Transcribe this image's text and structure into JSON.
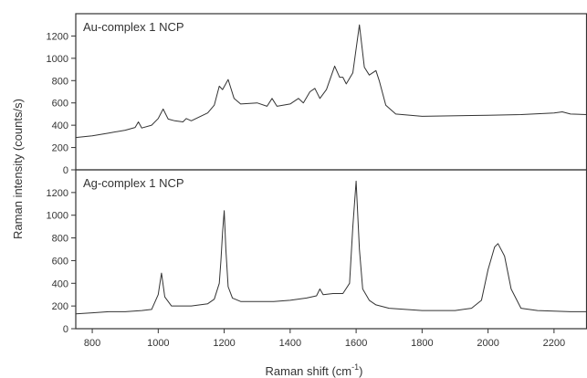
{
  "chart_data": {
    "type": "line",
    "ylabel": "Raman intensity (counts/s)",
    "xlabel": {
      "main": "Raman shift (cm",
      "sup": "-1",
      "close": ")"
    },
    "xlim": [
      750,
      2300
    ],
    "xticks": [
      800,
      1000,
      1200,
      1400,
      1600,
      1800,
      2000,
      2200
    ],
    "grid": false,
    "legend": "none",
    "line_color": "#333333",
    "panels": [
      {
        "label": "Au-complex 1 NCP",
        "ylim": [
          0,
          1400
        ],
        "yticks": [
          0,
          200,
          400,
          600,
          800,
          1000,
          1200
        ],
        "series": [
          {
            "x": [
              750,
              800,
              850,
              900,
              930,
              940,
              950,
              980,
              1000,
              1015,
              1030,
              1050,
              1075,
              1085,
              1100,
              1150,
              1170,
              1185,
              1195,
              1212,
              1230,
              1250,
              1300,
              1330,
              1345,
              1360,
              1400,
              1425,
              1440,
              1460,
              1475,
              1490,
              1510,
              1535,
              1550,
              1560,
              1570,
              1590,
              1610,
              1625,
              1640,
              1660,
              1670,
              1690,
              1720,
              1800,
              2000,
              2100,
              2200,
              2225,
              2250,
              2300
            ],
            "y": [
              290,
              305,
              330,
              355,
              380,
              430,
              375,
              400,
              460,
              545,
              455,
              440,
              430,
              460,
              440,
              510,
              580,
              750,
              720,
              810,
              640,
              590,
              600,
              570,
              640,
              570,
              590,
              640,
              600,
              700,
              730,
              640,
              720,
              930,
              830,
              830,
              770,
              870,
              1300,
              920,
              850,
              890,
              800,
              580,
              500,
              480,
              490,
              495,
              510,
              520,
              500,
              495
            ]
          }
        ]
      },
      {
        "label": "Ag-complex 1 NCP",
        "ylim": [
          0,
          1400
        ],
        "yticks": [
          0,
          200,
          400,
          600,
          800,
          1000,
          1200
        ],
        "series": [
          {
            "x": [
              750,
              800,
              850,
              900,
              950,
              980,
              1000,
              1010,
              1020,
              1040,
              1100,
              1150,
              1170,
              1185,
              1190,
              1195,
              1200,
              1205,
              1212,
              1225,
              1250,
              1300,
              1350,
              1400,
              1450,
              1480,
              1490,
              1500,
              1530,
              1560,
              1580,
              1590,
              1600,
              1610,
              1620,
              1640,
              1660,
              1700,
              1800,
              1900,
              1950,
              1980,
              2000,
              2020,
              2030,
              2050,
              2070,
              2100,
              2150,
              2200,
              2250,
              2300
            ],
            "y": [
              130,
              140,
              150,
              150,
              160,
              170,
              300,
              490,
              280,
              200,
              200,
              220,
              260,
              400,
              600,
              850,
              1040,
              700,
              370,
              270,
              240,
              240,
              240,
              250,
              270,
              290,
              350,
              300,
              310,
              310,
              400,
              900,
              1300,
              700,
              350,
              250,
              210,
              180,
              160,
              160,
              180,
              250,
              520,
              720,
              750,
              640,
              350,
              180,
              160,
              155,
              150,
              150
            ]
          }
        ]
      }
    ]
  }
}
